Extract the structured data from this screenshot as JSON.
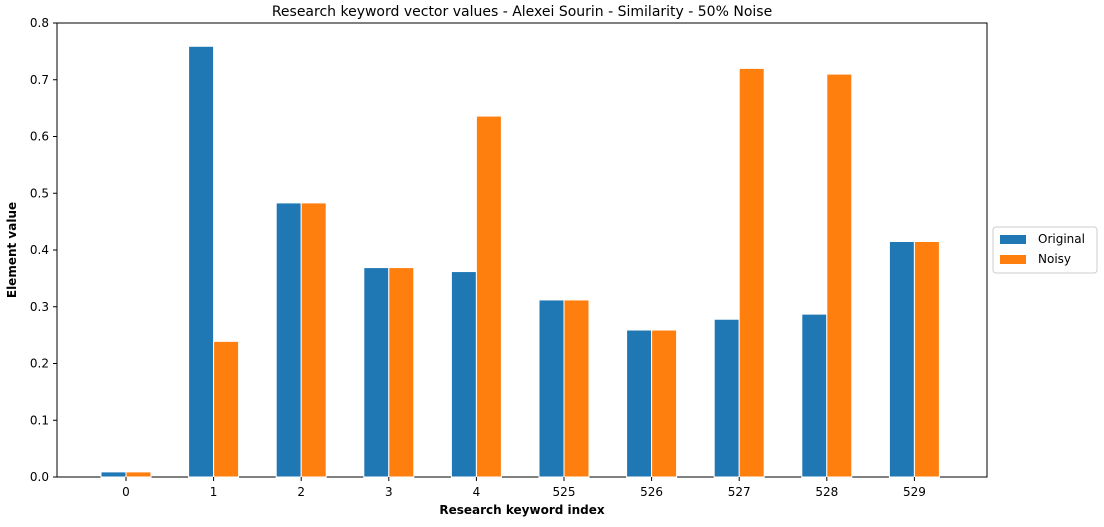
{
  "chart_data": {
    "type": "bar",
    "title": "Research keyword vector values - Alexei Sourin - Similarity - 50% Noise",
    "xlabel": "Research keyword index",
    "ylabel": "Element value",
    "categories": [
      "0",
      "1",
      "2",
      "3",
      "4",
      "525",
      "526",
      "527",
      "528",
      "529"
    ],
    "series": [
      {
        "name": "Original",
        "color": "#1f77b4",
        "values": [
          0.009,
          0.759,
          0.483,
          0.369,
          0.362,
          0.312,
          0.259,
          0.278,
          0.287,
          0.415
        ]
      },
      {
        "name": "Noisy",
        "color": "#ff7f0e",
        "values": [
          0.009,
          0.239,
          0.483,
          0.369,
          0.636,
          0.312,
          0.259,
          0.72,
          0.71,
          0.415
        ]
      }
    ],
    "ylim": [
      0,
      0.8
    ],
    "yticks": [
      "0.0",
      "0.1",
      "0.2",
      "0.3",
      "0.4",
      "0.5",
      "0.6",
      "0.7",
      "0.8"
    ],
    "grid": false,
    "legend_position": "outside-right"
  }
}
